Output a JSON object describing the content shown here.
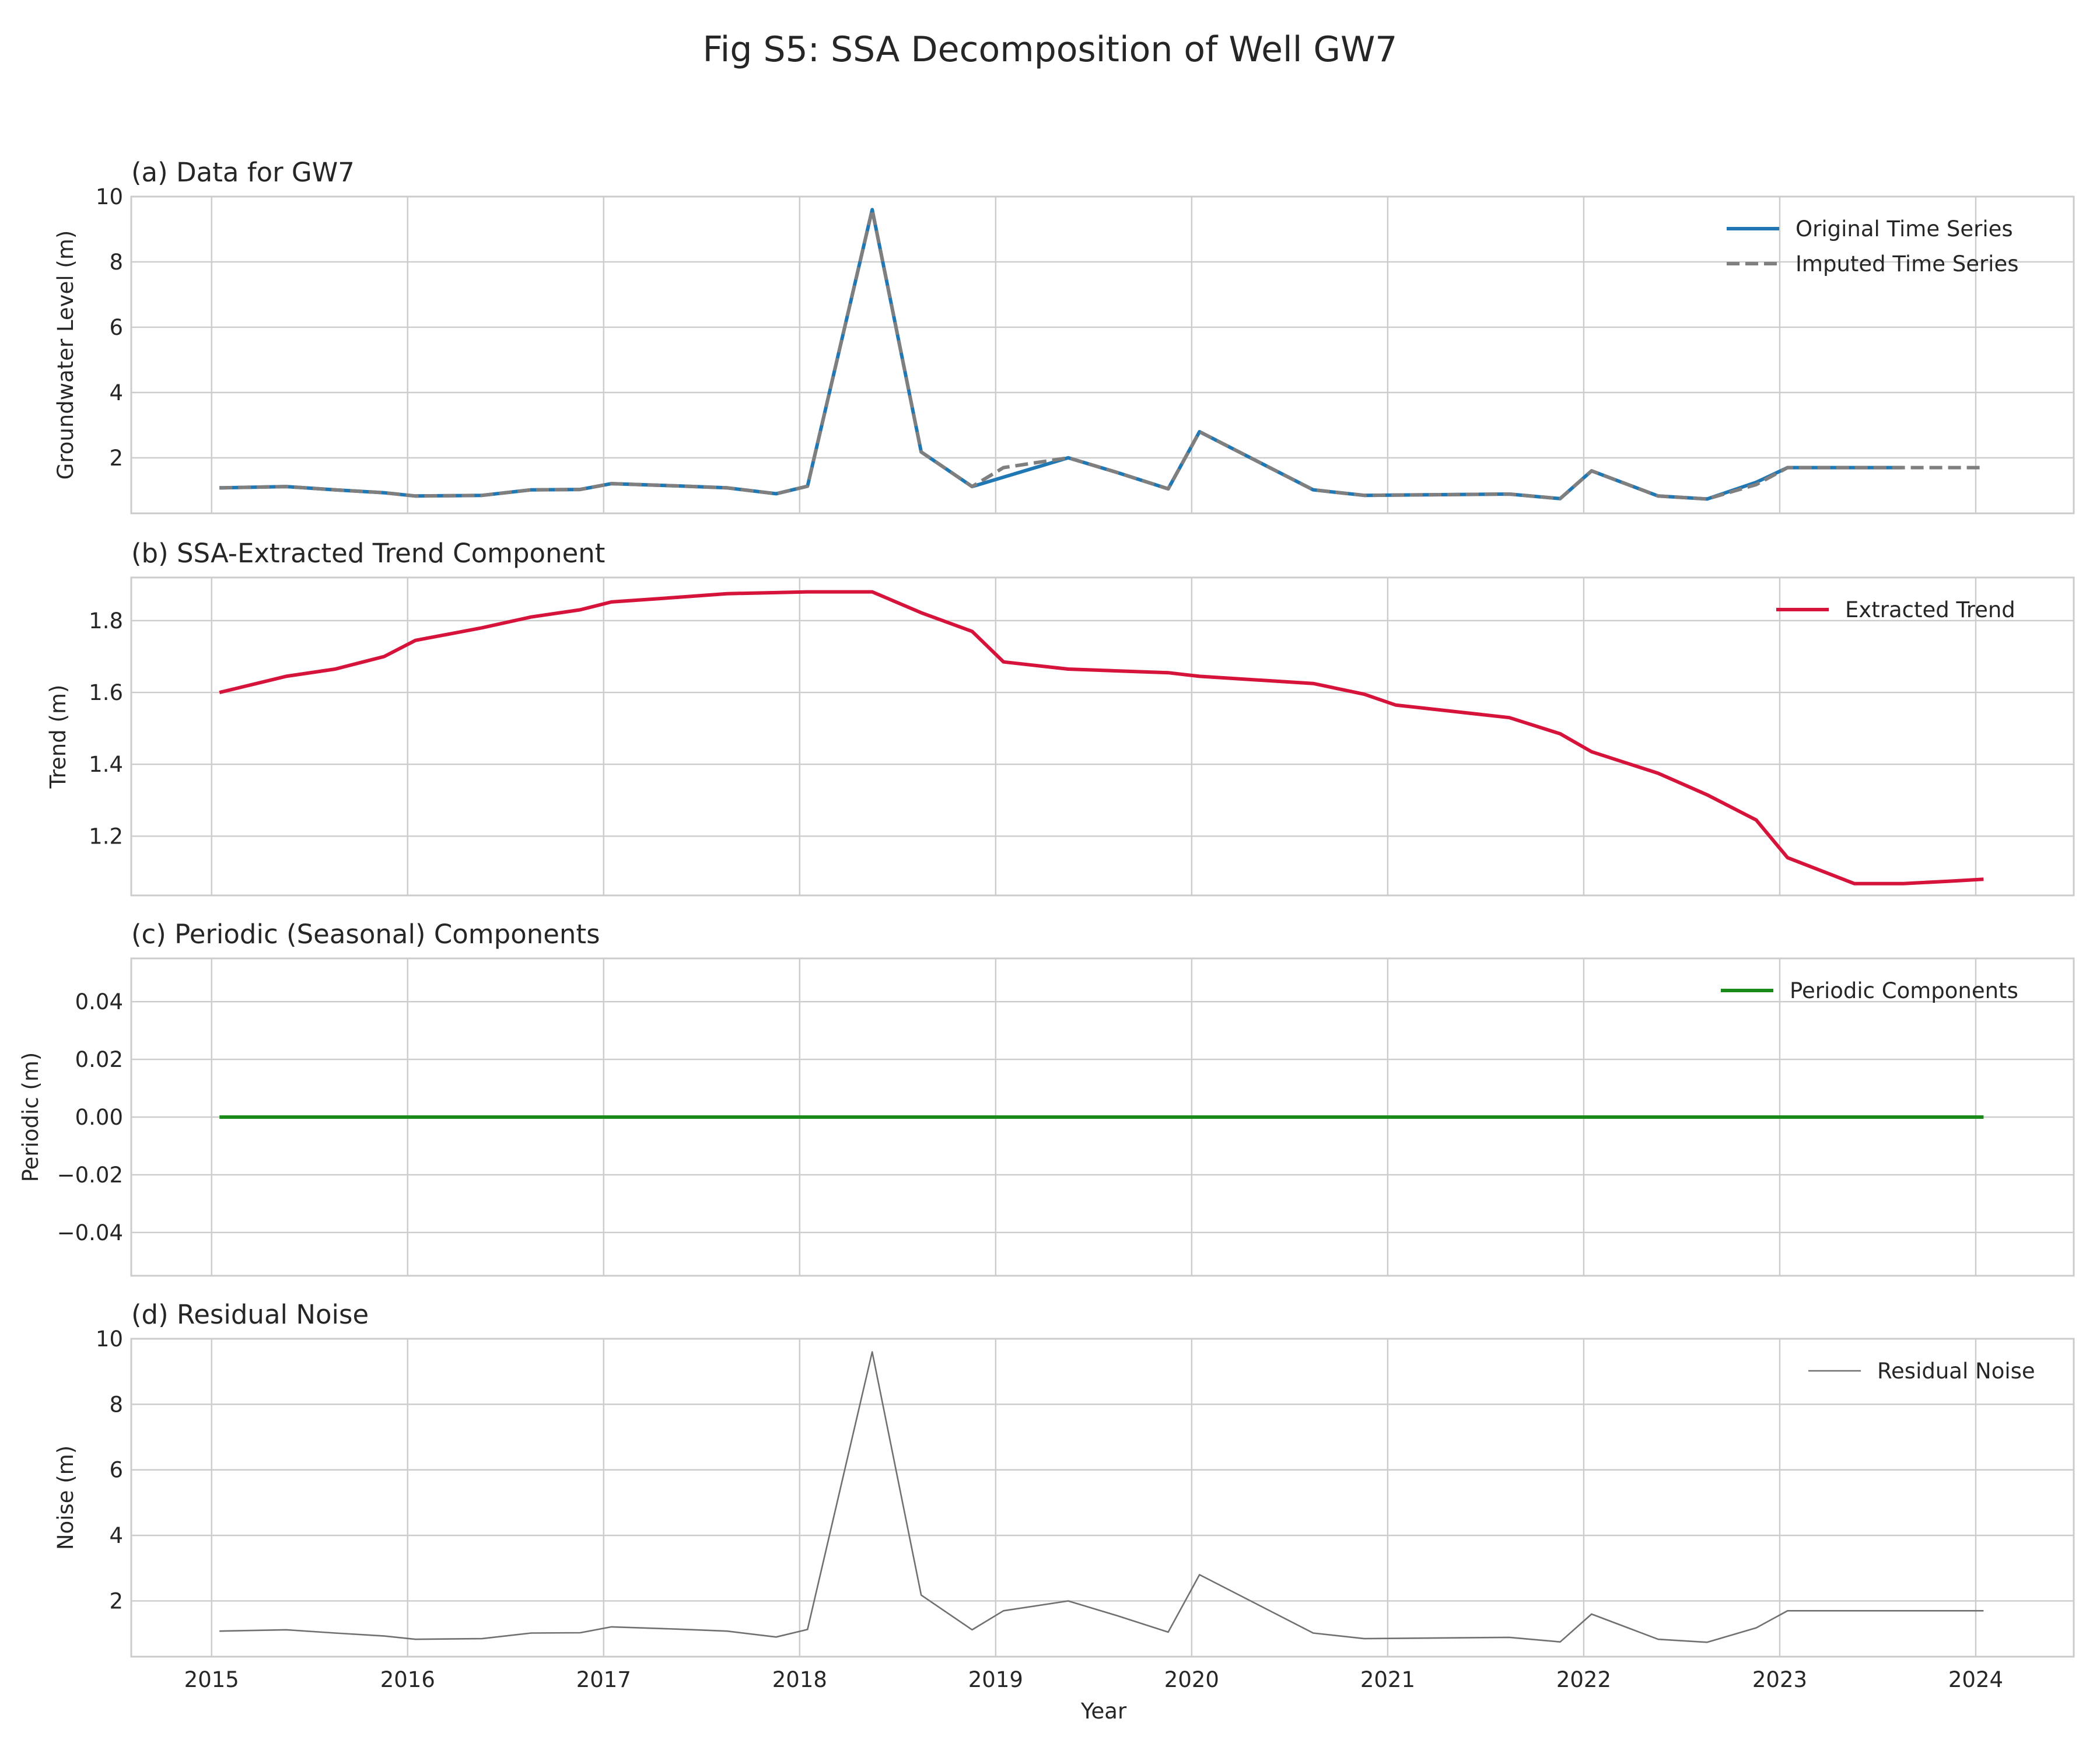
{
  "figure": {
    "title": "Fig S5: SSA Decomposition of Well GW7",
    "xlabel": "Year"
  },
  "chart_data": [
    {
      "type": "line",
      "title": "(a) Data for GW7",
      "ylabel": "Groundwater Level (m)",
      "xlim": [
        2014.59,
        2024.5
      ],
      "ylim": [
        0.3,
        10.0
      ],
      "x_ticks": [
        2015,
        2016,
        2017,
        2018,
        2019,
        2020,
        2021,
        2022,
        2023,
        2024
      ],
      "y_ticks": [
        2,
        4,
        6,
        8,
        10
      ],
      "y_tick_labels": [
        "2",
        "4",
        "6",
        "8",
        "10"
      ],
      "show_x_tick_labels": false,
      "grid": true,
      "legend": "top-right",
      "series": [
        {
          "name": "Original Time Series",
          "color": "#1f77b4",
          "style": "solid",
          "x": [
            2015.04,
            2015.38,
            2015.63,
            2015.88,
            2016.04,
            2016.38,
            2016.63,
            2016.88,
            2017.04,
            2017.38,
            2017.63,
            2017.88,
            2018.04,
            2018.37,
            2018.62,
            2018.88,
            2019.37,
            2019.62,
            2019.88,
            2020.04,
            2020.62,
            2020.88,
            2021.62,
            2021.88,
            2022.04,
            2022.38,
            2022.63,
            2022.88,
            2023.04,
            2023.38,
            2023.63
          ],
          "y": [
            1.08,
            1.12,
            1.02,
            0.93,
            0.83,
            0.85,
            1.02,
            1.03,
            1.21,
            1.14,
            1.08,
            0.9,
            1.13,
            9.6,
            2.18,
            1.12,
            2.0,
            1.55,
            1.05,
            2.8,
            1.02,
            0.85,
            0.89,
            0.75,
            1.6,
            0.83,
            0.74,
            1.25,
            1.7,
            1.7,
            1.7
          ]
        },
        {
          "name": "Imputed Time Series",
          "color": "#7f7f7f",
          "style": "dashed",
          "x": [
            2015.04,
            2015.38,
            2015.63,
            2015.88,
            2016.04,
            2016.38,
            2016.63,
            2016.88,
            2017.04,
            2017.38,
            2017.63,
            2017.88,
            2018.04,
            2018.37,
            2018.62,
            2018.88,
            2019.04,
            2019.37,
            2019.62,
            2019.88,
            2020.04,
            2020.62,
            2020.88,
            2021.62,
            2021.88,
            2022.04,
            2022.38,
            2022.63,
            2022.88,
            2023.04,
            2023.38,
            2023.63,
            2023.88,
            2024.04
          ],
          "y": [
            1.08,
            1.12,
            1.02,
            0.93,
            0.83,
            0.85,
            1.02,
            1.03,
            1.21,
            1.14,
            1.08,
            0.9,
            1.13,
            9.6,
            2.18,
            1.12,
            1.7,
            2.0,
            1.55,
            1.05,
            2.8,
            1.02,
            0.85,
            0.89,
            0.75,
            1.6,
            0.83,
            0.74,
            1.18,
            1.7,
            1.7,
            1.7,
            1.7,
            1.7
          ]
        }
      ]
    },
    {
      "type": "line",
      "title": "(b) SSA-Extracted Trend Component",
      "ylabel": "Trend (m)",
      "xlim": [
        2014.59,
        2024.5
      ],
      "ylim": [
        1.035,
        1.92
      ],
      "x_ticks": [
        2015,
        2016,
        2017,
        2018,
        2019,
        2020,
        2021,
        2022,
        2023,
        2024
      ],
      "y_ticks": [
        1.2,
        1.4,
        1.6,
        1.8
      ],
      "y_tick_labels": [
        "1.2",
        "1.4",
        "1.6",
        "1.8"
      ],
      "show_x_tick_labels": false,
      "grid": true,
      "legend": "top-right",
      "series": [
        {
          "name": "Extracted Trend",
          "color": "#d6133a",
          "style": "solid",
          "x": [
            2015.04,
            2015.38,
            2015.63,
            2015.88,
            2016.04,
            2016.38,
            2016.63,
            2016.88,
            2017.04,
            2017.38,
            2017.63,
            2017.88,
            2018.04,
            2018.37,
            2018.62,
            2018.88,
            2019.04,
            2019.37,
            2019.62,
            2019.88,
            2020.04,
            2020.62,
            2020.88,
            2021.04,
            2021.62,
            2021.88,
            2022.04,
            2022.38,
            2022.63,
            2022.88,
            2023.04,
            2023.38,
            2023.63,
            2023.88,
            2024.04
          ],
          "y": [
            1.6,
            1.645,
            1.665,
            1.7,
            1.745,
            1.78,
            1.81,
            1.83,
            1.852,
            1.865,
            1.875,
            1.878,
            1.88,
            1.88,
            1.822,
            1.77,
            1.685,
            1.665,
            1.66,
            1.655,
            1.645,
            1.625,
            1.595,
            1.565,
            1.53,
            1.485,
            1.435,
            1.375,
            1.315,
            1.245,
            1.14,
            1.068,
            1.068,
            1.075,
            1.08
          ]
        }
      ]
    },
    {
      "type": "line",
      "title": "(c) Periodic (Seasonal) Components",
      "ylabel": "Periodic (m)",
      "xlim": [
        2014.59,
        2024.5
      ],
      "ylim": [
        -0.055,
        0.055
      ],
      "x_ticks": [
        2015,
        2016,
        2017,
        2018,
        2019,
        2020,
        2021,
        2022,
        2023,
        2024
      ],
      "y_ticks": [
        -0.04,
        -0.02,
        0.0,
        0.02,
        0.04
      ],
      "y_tick_labels": [
        "−0.04",
        "−0.02",
        "0.00",
        "0.02",
        "0.04"
      ],
      "show_x_tick_labels": false,
      "grid": true,
      "legend": "top-right",
      "series": [
        {
          "name": "Periodic Components",
          "color": "#1a8a1a",
          "style": "solid",
          "x": [
            2015.04,
            2024.04
          ],
          "y": [
            0.0,
            0.0
          ]
        }
      ]
    },
    {
      "type": "line",
      "title": "(d) Residual Noise",
      "ylabel": "Noise (m)",
      "xlim": [
        2014.59,
        2024.5
      ],
      "ylim": [
        0.3,
        10.0
      ],
      "x_ticks": [
        2015,
        2016,
        2017,
        2018,
        2019,
        2020,
        2021,
        2022,
        2023,
        2024
      ],
      "x_tick_labels": [
        "2015",
        "2016",
        "2017",
        "2018",
        "2019",
        "2020",
        "2021",
        "2022",
        "2023",
        "2024"
      ],
      "y_ticks": [
        2,
        4,
        6,
        8,
        10
      ],
      "y_tick_labels": [
        "2",
        "4",
        "6",
        "8",
        "10"
      ],
      "show_x_tick_labels": true,
      "grid": true,
      "legend": "top-right",
      "series": [
        {
          "name": "Residual Noise",
          "color": "#707070",
          "style": "thin",
          "x": [
            2015.04,
            2015.38,
            2015.63,
            2015.88,
            2016.04,
            2016.38,
            2016.63,
            2016.88,
            2017.04,
            2017.38,
            2017.63,
            2017.88,
            2018.04,
            2018.37,
            2018.62,
            2018.88,
            2019.04,
            2019.37,
            2019.62,
            2019.88,
            2020.04,
            2020.62,
            2020.88,
            2021.62,
            2021.88,
            2022.04,
            2022.38,
            2022.63,
            2022.88,
            2023.04,
            2023.38,
            2023.63,
            2023.88,
            2024.04
          ],
          "y": [
            1.08,
            1.12,
            1.02,
            0.93,
            0.83,
            0.85,
            1.02,
            1.03,
            1.21,
            1.14,
            1.08,
            0.9,
            1.13,
            9.6,
            2.18,
            1.12,
            1.7,
            2.0,
            1.55,
            1.05,
            2.8,
            1.02,
            0.85,
            0.89,
            0.75,
            1.6,
            0.83,
            0.74,
            1.18,
            1.7,
            1.7,
            1.7,
            1.7,
            1.7
          ]
        }
      ]
    }
  ]
}
